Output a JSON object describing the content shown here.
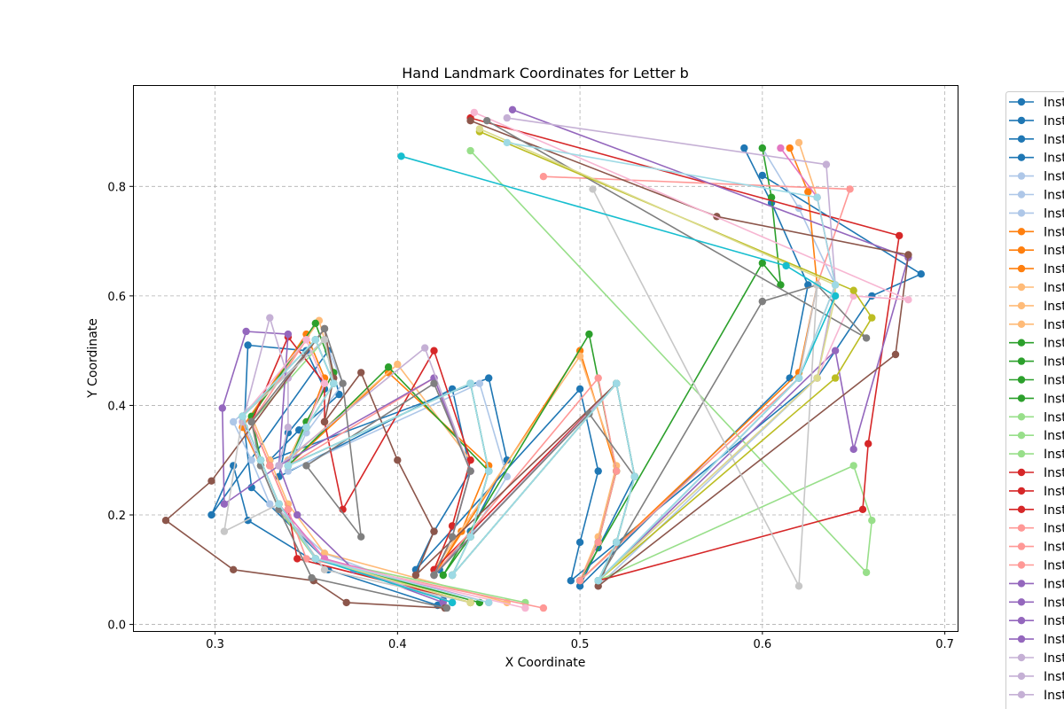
{
  "chart_data": {
    "type": "line",
    "title": "Hand Landmark Coordinates for Letter b",
    "xlabel": "X Coordinate",
    "ylabel": "Y Coordinate",
    "xlim": [
      0.255,
      0.707
    ],
    "ylim": [
      -0.012,
      0.985
    ],
    "xticks": [
      "0.3",
      "0.4",
      "0.5",
      "0.6",
      "0.7"
    ],
    "xtick_values": [
      0.3,
      0.4,
      0.5,
      0.6,
      0.7
    ],
    "yticks": [
      "0.0",
      "0.2",
      "0.4",
      "0.6",
      "0.8"
    ],
    "ytick_values": [
      0.0,
      0.2,
      0.4,
      0.6,
      0.8
    ],
    "grid": true,
    "grid_style": "dashed",
    "legend_placement": "outside right",
    "marker": "circle",
    "legend_label": "Inst",
    "series_colors": [
      "#1f77b4",
      "#aec7e8",
      "#ff7f0e",
      "#ffbb78",
      "#2ca02c",
      "#98df8a",
      "#d62728",
      "#ff9896",
      "#9467bd",
      "#c5b0d5",
      "#8c564b",
      "#c49c94",
      "#e377c2",
      "#f7b6d2",
      "#7f7f7f",
      "#c7c7c7",
      "#bcbd22",
      "#dbdb8d",
      "#17becf",
      "#9edae5"
    ],
    "legend_entries": [
      {
        "label": "Inst",
        "color": "#1f77b4"
      },
      {
        "label": "Inst",
        "color": "#1f77b4"
      },
      {
        "label": "Inst",
        "color": "#1f77b4"
      },
      {
        "label": "Inst",
        "color": "#1f77b4"
      },
      {
        "label": "Inst",
        "color": "#aec7e8"
      },
      {
        "label": "Inst",
        "color": "#aec7e8"
      },
      {
        "label": "Inst",
        "color": "#aec7e8"
      },
      {
        "label": "Inst",
        "color": "#ff7f0e"
      },
      {
        "label": "Inst",
        "color": "#ff7f0e"
      },
      {
        "label": "Inst",
        "color": "#ff7f0e"
      },
      {
        "label": "Inst",
        "color": "#ffbb78"
      },
      {
        "label": "Inst",
        "color": "#ffbb78"
      },
      {
        "label": "Inst",
        "color": "#ffbb78"
      },
      {
        "label": "Inst",
        "color": "#2ca02c"
      },
      {
        "label": "Inst",
        "color": "#2ca02c"
      },
      {
        "label": "Inst",
        "color": "#2ca02c"
      },
      {
        "label": "Inst",
        "color": "#2ca02c"
      },
      {
        "label": "Inst",
        "color": "#98df8a"
      },
      {
        "label": "Inst",
        "color": "#98df8a"
      },
      {
        "label": "Inst",
        "color": "#98df8a"
      },
      {
        "label": "Inst",
        "color": "#d62728"
      },
      {
        "label": "Inst",
        "color": "#d62728"
      },
      {
        "label": "Inst",
        "color": "#d62728"
      },
      {
        "label": "Inst",
        "color": "#ff9896"
      },
      {
        "label": "Inst",
        "color": "#ff9896"
      },
      {
        "label": "Inst",
        "color": "#ff9896"
      },
      {
        "label": "Inst",
        "color": "#9467bd"
      },
      {
        "label": "Inst",
        "color": "#9467bd"
      },
      {
        "label": "Inst",
        "color": "#9467bd"
      },
      {
        "label": "Inst",
        "color": "#9467bd"
      },
      {
        "label": "Inst",
        "color": "#c5b0d5"
      },
      {
        "label": "Inst",
        "color": "#c5b0d5"
      },
      {
        "label": "Inst",
        "color": "#c5b0d5"
      }
    ],
    "template_landmarks": {
      "x": [
        0.43,
        0.355,
        0.335,
        0.325,
        0.315,
        0.365,
        0.37,
        0.35,
        0.335,
        0.44,
        0.45,
        0.43,
        0.415,
        0.51,
        0.525,
        0.51,
        0.5,
        0.6,
        0.61,
        0.6,
        0.59
      ],
      "y": [
        0.04,
        0.12,
        0.23,
        0.31,
        0.38,
        0.53,
        0.45,
        0.36,
        0.29,
        0.44,
        0.27,
        0.16,
        0.08,
        0.44,
        0.27,
        0.15,
        0.07,
        0.45,
        0.61,
        0.74,
        0.86
      ]
    },
    "series": [
      {
        "name": "",
        "color": "#1f77b4",
        "x": [
          0.422,
          0.362,
          0.318,
          0.31,
          0.298,
          0.362,
          0.368,
          0.346,
          0.33,
          0.45,
          0.46,
          0.44,
          0.423,
          0.52,
          0.53,
          0.51,
          0.5,
          0.615,
          0.625,
          0.605,
          0.59
        ],
        "y": [
          0.035,
          0.1,
          0.19,
          0.29,
          0.2,
          0.5,
          0.42,
          0.355,
          0.3,
          0.45,
          0.3,
          0.17,
          0.1,
          0.44,
          0.27,
          0.14,
          0.07,
          0.45,
          0.62,
          0.77,
          0.87
        ]
      },
      {
        "name": "",
        "color": "#1f77b4",
        "x": [
          0.425,
          0.36,
          0.32,
          0.316,
          0.318,
          0.35,
          0.36,
          0.34,
          0.335,
          0.43,
          0.44,
          0.42,
          0.41,
          0.5,
          0.51,
          0.5,
          0.495,
          0.63,
          0.66,
          0.687,
          0.6
        ],
        "y": [
          0.045,
          0.12,
          0.25,
          0.36,
          0.51,
          0.5,
          0.43,
          0.35,
          0.27,
          0.43,
          0.28,
          0.17,
          0.1,
          0.43,
          0.28,
          0.15,
          0.08,
          0.45,
          0.6,
          0.64,
          0.82
        ]
      },
      {
        "name": "",
        "color": "#aec7e8",
        "x": [
          0.43,
          0.36,
          0.33,
          0.32,
          0.31,
          0.36,
          0.37,
          0.35,
          0.34,
          0.445,
          0.46,
          0.44,
          0.42,
          0.52,
          0.53,
          0.52,
          0.51,
          0.63,
          0.64,
          0.62,
          0.6
        ],
        "y": [
          0.04,
          0.13,
          0.22,
          0.3,
          0.37,
          0.52,
          0.44,
          0.35,
          0.28,
          0.44,
          0.27,
          0.16,
          0.09,
          0.44,
          0.27,
          0.15,
          0.07,
          0.45,
          0.62,
          0.76,
          0.87
        ]
      },
      {
        "name": "",
        "color": "#ff7f0e",
        "x": [
          0.44,
          0.355,
          0.335,
          0.325,
          0.315,
          0.35,
          0.36,
          0.35,
          0.34,
          0.395,
          0.45,
          0.435,
          0.42,
          0.5,
          0.52,
          0.51,
          0.5,
          0.62,
          0.63,
          0.625,
          0.615
        ],
        "y": [
          0.04,
          0.12,
          0.21,
          0.29,
          0.36,
          0.53,
          0.45,
          0.36,
          0.29,
          0.46,
          0.29,
          0.17,
          0.09,
          0.5,
          0.28,
          0.15,
          0.08,
          0.46,
          0.62,
          0.79,
          0.87
        ]
      },
      {
        "name": "",
        "color": "#ffbb78",
        "x": [
          0.46,
          0.36,
          0.34,
          0.33,
          0.32,
          0.357,
          0.365,
          0.35,
          0.34,
          0.4,
          0.44,
          0.43,
          0.42,
          0.5,
          0.52,
          0.51,
          0.5,
          0.62,
          0.64,
          0.63,
          0.62
        ],
        "y": [
          0.04,
          0.13,
          0.22,
          0.3,
          0.38,
          0.555,
          0.46,
          0.37,
          0.3,
          0.475,
          0.3,
          0.18,
          0.1,
          0.49,
          0.29,
          0.16,
          0.08,
          0.45,
          0.62,
          0.78,
          0.88
        ]
      },
      {
        "name": "",
        "color": "#2ca02c",
        "x": [
          0.445,
          0.355,
          0.335,
          0.325,
          0.32,
          0.355,
          0.365,
          0.35,
          0.34,
          0.395,
          0.45,
          0.44,
          0.425,
          0.505,
          0.52,
          0.51,
          0.5,
          0.6,
          0.61,
          0.605,
          0.6
        ],
        "y": [
          0.04,
          0.12,
          0.22,
          0.3,
          0.38,
          0.55,
          0.46,
          0.37,
          0.29,
          0.47,
          0.28,
          0.16,
          0.09,
          0.53,
          0.28,
          0.15,
          0.08,
          0.66,
          0.62,
          0.78,
          0.87
        ]
      },
      {
        "name": "",
        "color": "#98df8a",
        "x": [
          0.47,
          0.355,
          0.335,
          0.325,
          0.32,
          0.36,
          0.365,
          0.35,
          0.34,
          0.44,
          0.45,
          0.44,
          0.43,
          0.52,
          0.53,
          0.52,
          0.51,
          0.65,
          0.66,
          0.657,
          0.44
        ],
        "y": [
          0.04,
          0.12,
          0.21,
          0.29,
          0.37,
          0.52,
          0.44,
          0.36,
          0.29,
          0.44,
          0.28,
          0.16,
          0.09,
          0.44,
          0.27,
          0.15,
          0.08,
          0.29,
          0.19,
          0.095,
          0.865
        ]
      },
      {
        "name": "",
        "color": "#d62728",
        "x": [
          0.44,
          0.345,
          0.34,
          0.33,
          0.32,
          0.34,
          0.36,
          0.36,
          0.37,
          0.42,
          0.44,
          0.43,
          0.42,
          0.52,
          0.53,
          0.52,
          0.51,
          0.655,
          0.658,
          0.675,
          0.44
        ],
        "y": [
          0.04,
          0.12,
          0.21,
          0.29,
          0.37,
          0.525,
          0.44,
          0.37,
          0.21,
          0.5,
          0.3,
          0.18,
          0.1,
          0.44,
          0.27,
          0.15,
          0.08,
          0.21,
          0.33,
          0.71,
          0.925
        ]
      },
      {
        "name": "",
        "color": "#ff9896",
        "x": [
          0.48,
          0.35,
          0.34,
          0.33,
          0.32,
          0.35,
          0.36,
          0.35,
          0.34,
          0.42,
          0.44,
          0.43,
          0.42,
          0.51,
          0.52,
          0.51,
          0.5,
          0.62,
          0.63,
          0.648,
          0.48
        ],
        "y": [
          0.03,
          0.12,
          0.21,
          0.29,
          0.37,
          0.52,
          0.44,
          0.36,
          0.29,
          0.45,
          0.28,
          0.16,
          0.09,
          0.45,
          0.28,
          0.15,
          0.08,
          0.45,
          0.62,
          0.795,
          0.818
        ]
      },
      {
        "name": "",
        "color": "#9467bd",
        "x": [
          0.425,
          0.376,
          0.345,
          0.335,
          0.305,
          0.304,
          0.317,
          0.34,
          0.335,
          0.42,
          0.44,
          0.43,
          0.42,
          0.52,
          0.53,
          0.52,
          0.51,
          0.64,
          0.65,
          0.68,
          0.463
        ],
        "y": [
          0.04,
          0.1,
          0.2,
          0.29,
          0.22,
          0.395,
          0.535,
          0.53,
          0.29,
          0.45,
          0.28,
          0.16,
          0.09,
          0.44,
          0.27,
          0.15,
          0.08,
          0.5,
          0.32,
          0.67,
          0.94
        ]
      },
      {
        "name": "",
        "color": "#c5b0d5",
        "x": [
          0.43,
          0.36,
          0.335,
          0.325,
          0.315,
          0.33,
          0.34,
          0.34,
          0.335,
          0.415,
          0.44,
          0.43,
          0.42,
          0.52,
          0.53,
          0.52,
          0.51,
          0.63,
          0.64,
          0.635,
          0.46
        ],
        "y": [
          0.04,
          0.12,
          0.21,
          0.29,
          0.37,
          0.56,
          0.45,
          0.36,
          0.29,
          0.505,
          0.28,
          0.16,
          0.09,
          0.44,
          0.27,
          0.15,
          0.08,
          0.45,
          0.62,
          0.84,
          0.925
        ]
      },
      {
        "name": "",
        "color": "#8c564b",
        "x": [
          0.426,
          0.372,
          0.354,
          0.31,
          0.273,
          0.298,
          0.36,
          0.365,
          0.36,
          0.38,
          0.4,
          0.42,
          0.41,
          0.52,
          0.53,
          0.52,
          0.51,
          0.673,
          0.68,
          0.575,
          0.44
        ],
        "y": [
          0.03,
          0.04,
          0.08,
          0.1,
          0.19,
          0.262,
          0.54,
          0.45,
          0.37,
          0.46,
          0.3,
          0.17,
          0.09,
          0.44,
          0.27,
          0.15,
          0.07,
          0.493,
          0.675,
          0.745,
          0.92
        ]
      },
      {
        "name": "",
        "color": "#e377c2",
        "x": [
          0.45,
          0.36,
          0.335,
          0.325,
          0.315,
          0.355,
          0.365,
          0.35,
          0.34,
          0.44,
          0.45,
          0.44,
          0.43,
          0.52,
          0.53,
          0.52,
          0.51,
          0.62,
          0.64,
          0.63,
          0.61
        ],
        "y": [
          0.04,
          0.12,
          0.22,
          0.3,
          0.38,
          0.52,
          0.44,
          0.36,
          0.29,
          0.44,
          0.28,
          0.16,
          0.09,
          0.44,
          0.27,
          0.15,
          0.08,
          0.45,
          0.62,
          0.78,
          0.87
        ]
      },
      {
        "name": "",
        "color": "#f7b6d2",
        "x": [
          0.47,
          0.355,
          0.335,
          0.325,
          0.315,
          0.35,
          0.36,
          0.35,
          0.34,
          0.44,
          0.45,
          0.44,
          0.43,
          0.52,
          0.53,
          0.52,
          0.51,
          0.63,
          0.65,
          0.68,
          0.442
        ],
        "y": [
          0.03,
          0.12,
          0.22,
          0.3,
          0.38,
          0.52,
          0.44,
          0.36,
          0.29,
          0.44,
          0.28,
          0.16,
          0.09,
          0.44,
          0.27,
          0.15,
          0.08,
          0.45,
          0.6,
          0.593,
          0.935
        ]
      },
      {
        "name": "",
        "color": "#7f7f7f",
        "x": [
          0.427,
          0.353,
          0.335,
          0.325,
          0.32,
          0.36,
          0.37,
          0.38,
          0.35,
          0.42,
          0.44,
          0.43,
          0.42,
          0.505,
          0.53,
          0.52,
          0.51,
          0.6,
          0.63,
          0.657,
          0.449
        ],
        "y": [
          0.03,
          0.085,
          0.21,
          0.29,
          0.37,
          0.54,
          0.44,
          0.16,
          0.29,
          0.44,
          0.28,
          0.16,
          0.09,
          0.385,
          0.27,
          0.15,
          0.08,
          0.59,
          0.62,
          0.523,
          0.92
        ]
      },
      {
        "name": "",
        "color": "#c7c7c7",
        "x": [
          0.44,
          0.36,
          0.335,
          0.305,
          0.315,
          0.36,
          0.365,
          0.35,
          0.34,
          0.44,
          0.45,
          0.44,
          0.43,
          0.52,
          0.53,
          0.52,
          0.51,
          0.62,
          0.63,
          0.62,
          0.507
        ],
        "y": [
          0.04,
          0.1,
          0.22,
          0.17,
          0.38,
          0.52,
          0.44,
          0.36,
          0.29,
          0.44,
          0.28,
          0.16,
          0.09,
          0.44,
          0.27,
          0.15,
          0.08,
          0.45,
          0.62,
          0.07,
          0.795
        ]
      },
      {
        "name": "",
        "color": "#bcbd22",
        "x": [
          0.44,
          0.355,
          0.335,
          0.325,
          0.315,
          0.355,
          0.365,
          0.35,
          0.34,
          0.44,
          0.45,
          0.44,
          0.43,
          0.52,
          0.53,
          0.52,
          0.51,
          0.64,
          0.66,
          0.65,
          0.445
        ],
        "y": [
          0.04,
          0.12,
          0.22,
          0.3,
          0.38,
          0.52,
          0.44,
          0.36,
          0.29,
          0.44,
          0.28,
          0.16,
          0.09,
          0.44,
          0.27,
          0.15,
          0.08,
          0.45,
          0.56,
          0.61,
          0.9
        ]
      },
      {
        "name": "",
        "color": "#dbdb8d",
        "x": [
          0.44,
          0.355,
          0.335,
          0.325,
          0.315,
          0.355,
          0.365,
          0.35,
          0.34,
          0.44,
          0.45,
          0.44,
          0.43,
          0.52,
          0.53,
          0.52,
          0.51,
          0.63,
          0.64,
          0.64,
          0.445
        ],
        "y": [
          0.04,
          0.12,
          0.22,
          0.3,
          0.38,
          0.52,
          0.44,
          0.36,
          0.29,
          0.44,
          0.28,
          0.16,
          0.09,
          0.44,
          0.27,
          0.15,
          0.08,
          0.45,
          0.6,
          0.62,
          0.905
        ]
      },
      {
        "name": "",
        "color": "#17becf",
        "x": [
          0.43,
          0.355,
          0.335,
          0.325,
          0.315,
          0.355,
          0.365,
          0.35,
          0.34,
          0.44,
          0.45,
          0.44,
          0.43,
          0.52,
          0.53,
          0.52,
          0.51,
          0.62,
          0.64,
          0.613,
          0.402
        ],
        "y": [
          0.04,
          0.12,
          0.22,
          0.3,
          0.38,
          0.52,
          0.44,
          0.36,
          0.29,
          0.44,
          0.28,
          0.16,
          0.09,
          0.44,
          0.27,
          0.15,
          0.08,
          0.45,
          0.6,
          0.655,
          0.855
        ]
      },
      {
        "name": "",
        "color": "#9edae5",
        "x": [
          0.45,
          0.355,
          0.335,
          0.325,
          0.315,
          0.355,
          0.365,
          0.35,
          0.34,
          0.44,
          0.45,
          0.44,
          0.43,
          0.52,
          0.53,
          0.52,
          0.51,
          0.62,
          0.64,
          0.63,
          0.46
        ],
        "y": [
          0.04,
          0.12,
          0.22,
          0.3,
          0.38,
          0.52,
          0.44,
          0.36,
          0.29,
          0.44,
          0.28,
          0.16,
          0.09,
          0.44,
          0.27,
          0.15,
          0.08,
          0.45,
          0.62,
          0.78,
          0.88
        ]
      }
    ]
  }
}
